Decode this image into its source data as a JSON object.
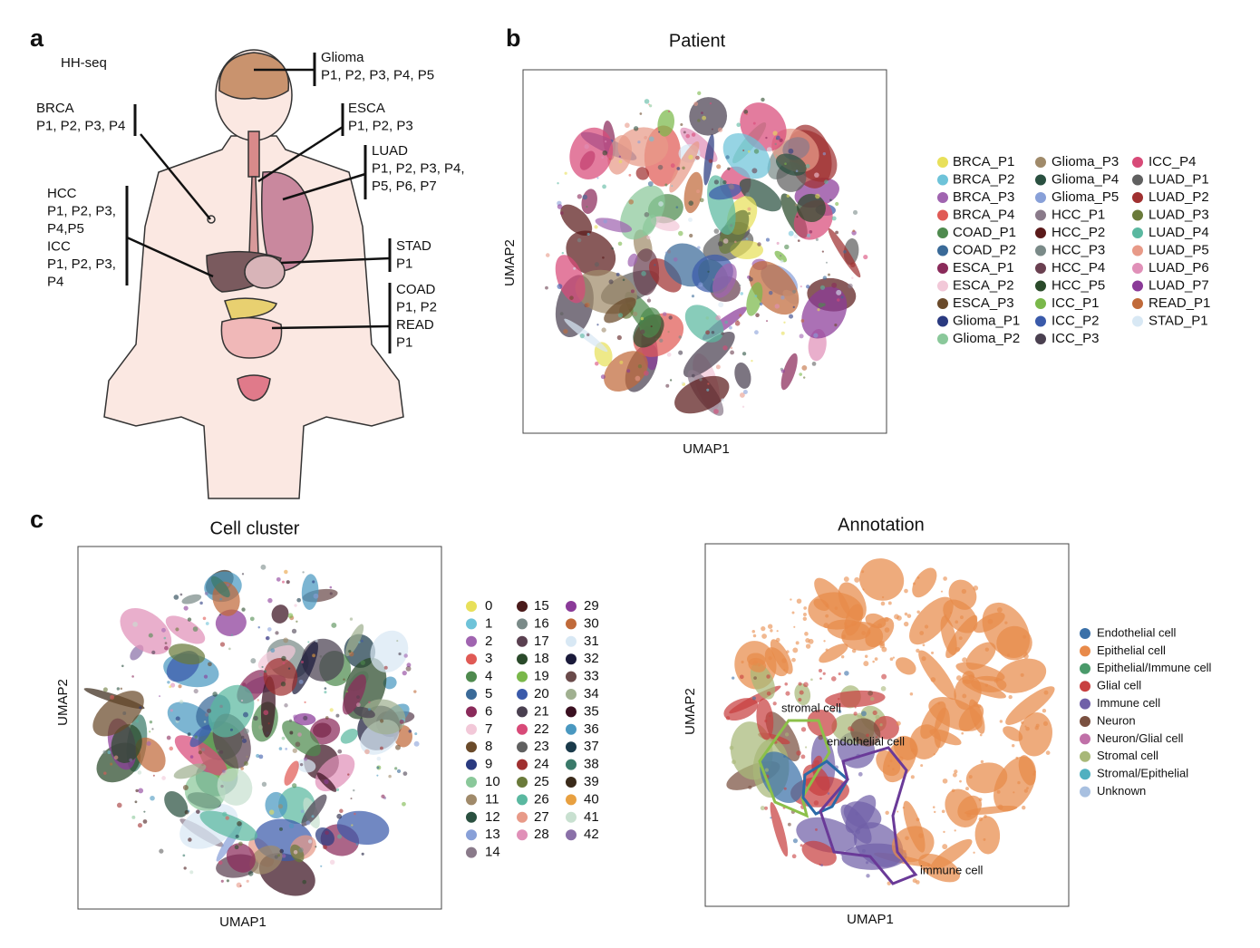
{
  "panels": {
    "a": {
      "label": "a",
      "subtitle": "HH-seq",
      "organs": [
        {
          "lines": [
            "Glioma",
            "P1, P2, P3, P4, P5"
          ]
        },
        {
          "lines": [
            "BRCA",
            "P1, P2, P3, P4"
          ]
        },
        {
          "lines": [
            "ESCA",
            "P1, P2, P3"
          ]
        },
        {
          "lines": [
            "LUAD",
            "P1, P2, P3, P4,",
            "P5, P6, P7"
          ]
        },
        {
          "lines": [
            "HCC",
            "P1, P2, P3,",
            "P4,P5",
            "ICC",
            "P1, P2, P3,",
            "P4"
          ]
        },
        {
          "lines": [
            "STAD",
            "P1"
          ]
        },
        {
          "lines": [
            "COAD",
            "P1, P2",
            "READ",
            "P1"
          ]
        }
      ]
    },
    "b": {
      "label": "b",
      "title": "Patient",
      "xlabel": "UMAP1",
      "ylabel": "UMAP2",
      "legend": [
        {
          "name": "BRCA_P1",
          "color": "#e8e05a"
        },
        {
          "name": "BRCA_P2",
          "color": "#6ec3d9"
        },
        {
          "name": "BRCA_P3",
          "color": "#a064b0"
        },
        {
          "name": "BRCA_P4",
          "color": "#e05a55"
        },
        {
          "name": "COAD_P1",
          "color": "#4e8a4e"
        },
        {
          "name": "COAD_P2",
          "color": "#3a6a98"
        },
        {
          "name": "ESCA_P1",
          "color": "#8a2a5a"
        },
        {
          "name": "ESCA_P2",
          "color": "#f2c8d8"
        },
        {
          "name": "ESCA_P3",
          "color": "#6a4a2a"
        },
        {
          "name": "Glioma_P1",
          "color": "#2a3a80"
        },
        {
          "name": "Glioma_P2",
          "color": "#8ac89a"
        },
        {
          "name": "Glioma_P3",
          "color": "#a08a6a"
        },
        {
          "name": "Glioma_P4",
          "color": "#2a5040"
        },
        {
          "name": "Glioma_P5",
          "color": "#88a0d8"
        },
        {
          "name": "HCC_P1",
          "color": "#8a7a8a"
        },
        {
          "name": "HCC_P2",
          "color": "#5a1a1a"
        },
        {
          "name": "HCC_P3",
          "color": "#7a8a88"
        },
        {
          "name": "HCC_P4",
          "color": "#6a4050"
        },
        {
          "name": "HCC_P5",
          "color": "#2a4a2a"
        },
        {
          "name": "ICC_P1",
          "color": "#7ab84a"
        },
        {
          "name": "ICC_P2",
          "color": "#3a5aaa"
        },
        {
          "name": "ICC_P3",
          "color": "#4a4050"
        },
        {
          "name": "ICC_P4",
          "color": "#d84a78"
        },
        {
          "name": "LUAD_P1",
          "color": "#606060"
        },
        {
          "name": "LUAD_P2",
          "color": "#a03030"
        },
        {
          "name": "LUAD_P3",
          "color": "#6a7a3a"
        },
        {
          "name": "LUAD_P4",
          "color": "#5ab8a0"
        },
        {
          "name": "LUAD_P5",
          "color": "#e89a88"
        },
        {
          "name": "LUAD_P6",
          "color": "#e090b8"
        },
        {
          "name": "LUAD_P7",
          "color": "#8a3a98"
        },
        {
          "name": "READ_P1",
          "color": "#c06a3a"
        },
        {
          "name": "STAD_P1",
          "color": "#d8e8f4"
        }
      ]
    },
    "c": {
      "label": "c",
      "cluster": {
        "title": "Cell cluster",
        "xlabel": "UMAP1",
        "ylabel": "UMAP2",
        "legend": [
          {
            "name": "0",
            "color": "#e8e05a"
          },
          {
            "name": "1",
            "color": "#6ec3d9"
          },
          {
            "name": "2",
            "color": "#a064b0"
          },
          {
            "name": "3",
            "color": "#e05a55"
          },
          {
            "name": "4",
            "color": "#4e8a4e"
          },
          {
            "name": "5",
            "color": "#3a6a98"
          },
          {
            "name": "6",
            "color": "#8a2a5a"
          },
          {
            "name": "7",
            "color": "#f2c8d8"
          },
          {
            "name": "8",
            "color": "#6a4a2a"
          },
          {
            "name": "9",
            "color": "#2a3a80"
          },
          {
            "name": "10",
            "color": "#8ac89a"
          },
          {
            "name": "11",
            "color": "#a08a6a"
          },
          {
            "name": "12",
            "color": "#2a5040"
          },
          {
            "name": "13",
            "color": "#88a0d8"
          },
          {
            "name": "14",
            "color": "#8a7a8a"
          },
          {
            "name": "15",
            "color": "#4a1a1a"
          },
          {
            "name": "16",
            "color": "#7a8a88"
          },
          {
            "name": "17",
            "color": "#5a4050"
          },
          {
            "name": "18",
            "color": "#2a4a2a"
          },
          {
            "name": "19",
            "color": "#7ab84a"
          },
          {
            "name": "20",
            "color": "#3a5aaa"
          },
          {
            "name": "21",
            "color": "#4a4050"
          },
          {
            "name": "22",
            "color": "#d84a78"
          },
          {
            "name": "23",
            "color": "#606060"
          },
          {
            "name": "24",
            "color": "#a03030"
          },
          {
            "name": "25",
            "color": "#6a7a3a"
          },
          {
            "name": "26",
            "color": "#5ab8a0"
          },
          {
            "name": "27",
            "color": "#e89a88"
          },
          {
            "name": "28",
            "color": "#e090b8"
          },
          {
            "name": "29",
            "color": "#8a3a98"
          },
          {
            "name": "30",
            "color": "#c06a3a"
          },
          {
            "name": "31",
            "color": "#d8e8f4"
          },
          {
            "name": "32",
            "color": "#1a1a3a"
          },
          {
            "name": "33",
            "color": "#6a4a4a"
          },
          {
            "name": "34",
            "color": "#a0b090"
          },
          {
            "name": "35",
            "color": "#3a1020"
          },
          {
            "name": "36",
            "color": "#4a98c0"
          },
          {
            "name": "37",
            "color": "#1a3a4a"
          },
          {
            "name": "38",
            "color": "#3a7a6a"
          },
          {
            "name": "39",
            "color": "#3a2a1a"
          },
          {
            "name": "40",
            "color": "#e8a040"
          },
          {
            "name": "41",
            "color": "#c8e0d0"
          },
          {
            "name": "42",
            "color": "#8a70a8"
          }
        ]
      },
      "annotation": {
        "title": "Annotation",
        "xlabel": "UMAP1",
        "ylabel": "UMAP2",
        "callouts": [
          "stromal cell",
          "endothelial cell",
          "immune cell"
        ],
        "legend": [
          {
            "name": "Endothelial cell",
            "color": "#3a70a8"
          },
          {
            "name": "Epithelial cell",
            "color": "#e88a4a"
          },
          {
            "name": "Epithelial/Immune cell",
            "color": "#4a9a6a"
          },
          {
            "name": "Glial cell",
            "color": "#c84040"
          },
          {
            "name": "Immune cell",
            "color": "#7060a8"
          },
          {
            "name": "Neuron",
            "color": "#7a5040"
          },
          {
            "name": "Neuron/Glial cell",
            "color": "#c070a8"
          },
          {
            "name": "Stromal cell",
            "color": "#a8b878"
          },
          {
            "name": "Stromal/Epithelial",
            "color": "#50b0c0"
          },
          {
            "name": "Unknown",
            "color": "#a8c0e0"
          }
        ]
      }
    }
  }
}
